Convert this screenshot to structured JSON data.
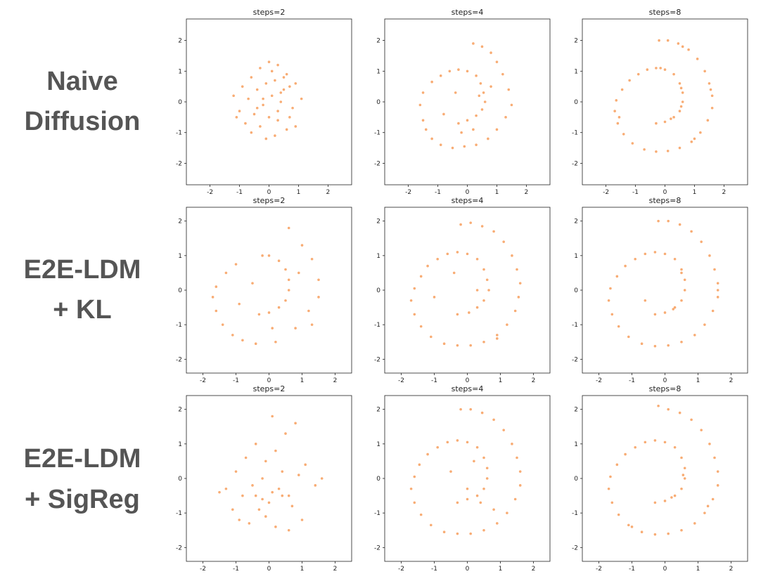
{
  "row_labels": [
    [
      "Naive",
      "Diffusion"
    ],
    [
      "E2E-LDM",
      "+ KL"
    ],
    [
      "E2E-LDM",
      "+ SigReg"
    ]
  ],
  "chart_data": [
    {
      "type": "scatter",
      "title": "steps=2",
      "color": "#f5802a",
      "x": [
        -1.2,
        -0.9,
        -0.6,
        -0.3,
        0,
        0.3,
        0.6,
        0.9,
        1.1,
        -1.0,
        -0.7,
        -0.4,
        -0.1,
        0.2,
        0.5,
        0.8,
        -0.8,
        -0.5,
        -0.2,
        0.1,
        0.4,
        0.7,
        -0.6,
        -0.3,
        0.0,
        0.3,
        0.6,
        0.2,
        -0.1,
        0.4,
        -0.4,
        0.1,
        0.9,
        -1.1,
        0.5,
        -0.2,
        0.3,
        0.7
      ],
      "y": [
        0.2,
        0.5,
        0.8,
        1.1,
        1.3,
        1.2,
        0.9,
        0.6,
        0.1,
        -0.3,
        0.1,
        0.4,
        0.6,
        0.7,
        0.4,
        -0.2,
        -0.7,
        -0.4,
        -0.1,
        0.2,
        0.0,
        -0.5,
        -1.0,
        -0.8,
        -0.5,
        -0.3,
        -0.9,
        -1.1,
        -1.2,
        0.3,
        -0.2,
        1.0,
        -0.8,
        -0.5,
        0.8,
        0.1,
        -0.6,
        0.5
      ],
      "xlim": [
        -2.8,
        2.8
      ],
      "ylim": [
        -2.7,
        2.7
      ],
      "xticks": [
        -2,
        -1,
        0,
        1,
        2
      ],
      "yticks": [
        -2,
        -1,
        0,
        1,
        2
      ]
    },
    {
      "type": "scatter",
      "title": "steps=4",
      "color": "#f5802a",
      "x": [
        -0.3,
        0.0,
        0.3,
        0.5,
        0.6,
        0.55,
        0.45,
        0.3,
        0.0,
        -0.3,
        -0.6,
        -0.9,
        -1.2,
        -1.5,
        -1.6,
        -1.5,
        -1.4,
        -1.2,
        -0.9,
        -0.5,
        -0.1,
        0.3,
        0.7,
        1.0,
        1.3,
        1.5,
        1.4,
        1.2,
        1.0,
        0.8,
        0.5,
        0.2,
        -0.4,
        0.2,
        0.8,
        -0.8,
        0.4,
        -0.2
      ],
      "y": [
        -0.7,
        -0.6,
        -0.45,
        -0.25,
        0.0,
        0.3,
        0.6,
        0.85,
        1.0,
        1.05,
        1.0,
        0.85,
        0.65,
        0.3,
        -0.1,
        -0.6,
        -0.9,
        -1.2,
        -1.4,
        -1.5,
        -1.45,
        -1.4,
        -1.2,
        -0.9,
        -0.5,
        -0.1,
        0.4,
        0.9,
        1.3,
        1.6,
        1.8,
        1.9,
        0.3,
        -0.9,
        0.5,
        -0.4,
        0.2,
        -1.0
      ],
      "xlim": [
        -2.8,
        2.8
      ],
      "ylim": [
        -2.7,
        2.7
      ],
      "xticks": [
        -2,
        -1,
        0,
        1,
        2
      ],
      "yticks": [
        -2,
        -1,
        0,
        1,
        2
      ]
    },
    {
      "type": "scatter",
      "title": "steps=8",
      "color": "#f5802a",
      "x": [
        -0.3,
        0.0,
        0.3,
        0.5,
        0.6,
        0.6,
        0.5,
        0.3,
        0.0,
        -0.3,
        -0.6,
        -0.9,
        -1.2,
        -1.45,
        -1.65,
        -1.7,
        -1.6,
        -1.4,
        -1.1,
        -0.7,
        -0.3,
        0.1,
        0.5,
        0.9,
        1.2,
        1.45,
        1.6,
        1.6,
        1.5,
        1.35,
        1.1,
        0.8,
        0.45,
        0.1,
        -0.2,
        0.2,
        0.55,
        0.55,
        -0.15,
        -1.55,
        1.0,
        1.55,
        0.6
      ],
      "y": [
        -0.7,
        -0.65,
        -0.5,
        -0.3,
        0.0,
        0.3,
        0.6,
        0.9,
        1.05,
        1.1,
        1.05,
        0.9,
        0.7,
        0.4,
        0.05,
        -0.3,
        -0.7,
        -1.05,
        -1.35,
        -1.55,
        -1.62,
        -1.6,
        -1.5,
        -1.3,
        -1.0,
        -0.6,
        -0.2,
        0.2,
        0.6,
        1.0,
        1.4,
        1.7,
        1.9,
        2.0,
        2.0,
        -0.55,
        -0.15,
        0.45,
        1.1,
        -0.5,
        -1.2,
        0.4,
        1.8
      ],
      "xlim": [
        -2.8,
        2.8
      ],
      "ylim": [
        -2.7,
        2.7
      ],
      "xticks": [
        -2,
        -1,
        0,
        1,
        2
      ],
      "yticks": [
        -2,
        -1,
        0,
        1,
        2
      ]
    },
    {
      "type": "scatter",
      "title": "steps=2",
      "color": "#f5802a",
      "x": [
        -0.3,
        0.0,
        0.3,
        0.5,
        0.6,
        0.6,
        0.5,
        0.3,
        0.0,
        -0.2,
        -1.0,
        -1.3,
        -1.6,
        -1.7,
        -1.6,
        -1.4,
        -1.1,
        -0.8,
        -0.4,
        0.2,
        0.8,
        1.2,
        1.5,
        1.5,
        1.3,
        1.0,
        0.6,
        -0.5,
        0.1,
        -0.9,
        0.9,
        1.3
      ],
      "y": [
        -0.7,
        -0.65,
        -0.5,
        -0.3,
        0.0,
        0.3,
        0.6,
        0.85,
        1.0,
        1.0,
        0.75,
        0.5,
        0.1,
        -0.2,
        -0.6,
        -1.0,
        -1.3,
        -1.45,
        -1.55,
        -1.5,
        -1.1,
        -0.6,
        -0.2,
        0.3,
        0.9,
        1.3,
        1.8,
        0.2,
        -1.1,
        -0.4,
        0.5,
        -1.0
      ],
      "xlim": [
        -2.5,
        2.5
      ],
      "ylim": [
        -2.4,
        2.4
      ],
      "xticks": [
        -2,
        -1,
        0,
        1,
        2
      ],
      "yticks": [
        -2,
        -1,
        0,
        1,
        2
      ]
    },
    {
      "type": "scatter",
      "title": "steps=4",
      "color": "#f5802a",
      "x": [
        -0.3,
        0.05,
        0.3,
        0.5,
        0.65,
        0.6,
        0.5,
        0.3,
        0.0,
        -0.3,
        -0.6,
        -0.9,
        -1.2,
        -1.4,
        -1.6,
        -1.7,
        -1.6,
        -1.4,
        -1.1,
        -0.7,
        -0.3,
        0.1,
        0.5,
        0.9,
        1.2,
        1.45,
        1.55,
        1.6,
        1.5,
        1.35,
        1.1,
        0.8,
        0.45,
        0.1,
        -0.2,
        0.3,
        -0.4,
        0.9,
        -1.0
      ],
      "y": [
        -0.7,
        -0.65,
        -0.5,
        -0.3,
        0.0,
        0.3,
        0.6,
        0.9,
        1.05,
        1.1,
        1.05,
        0.9,
        0.7,
        0.4,
        0.05,
        -0.3,
        -0.7,
        -1.05,
        -1.35,
        -1.55,
        -1.6,
        -1.6,
        -1.5,
        -1.3,
        -1.0,
        -0.6,
        -0.2,
        0.2,
        0.6,
        1.0,
        1.4,
        1.7,
        1.85,
        1.95,
        1.9,
        0.0,
        0.5,
        -1.4,
        -0.2
      ],
      "xlim": [
        -2.5,
        2.5
      ],
      "ylim": [
        -2.4,
        2.4
      ],
      "xticks": [
        -2,
        -1,
        0,
        1,
        2
      ],
      "yticks": [
        -2,
        -1,
        0,
        1,
        2
      ]
    },
    {
      "type": "scatter",
      "title": "steps=8",
      "color": "#f5802a",
      "x": [
        -0.3,
        0.0,
        0.3,
        0.5,
        0.6,
        0.6,
        0.5,
        0.3,
        0.0,
        -0.3,
        -0.6,
        -0.9,
        -1.2,
        -1.45,
        -1.65,
        -1.7,
        -1.6,
        -1.4,
        -1.1,
        -0.7,
        -0.3,
        0.1,
        0.5,
        0.9,
        1.2,
        1.45,
        1.6,
        1.6,
        1.5,
        1.35,
        1.1,
        0.8,
        0.45,
        0.1,
        -0.2,
        0.25,
        0.5,
        -0.6,
        1.6
      ],
      "y": [
        -0.7,
        -0.65,
        -0.5,
        -0.3,
        0.0,
        0.3,
        0.6,
        0.9,
        1.05,
        1.1,
        1.05,
        0.9,
        0.7,
        0.4,
        0.05,
        -0.3,
        -0.7,
        -1.05,
        -1.35,
        -1.55,
        -1.62,
        -1.6,
        -1.5,
        -1.3,
        -1.0,
        -0.6,
        -0.2,
        0.2,
        0.6,
        1.0,
        1.4,
        1.7,
        1.9,
        2.0,
        2.0,
        -0.55,
        0.5,
        -0.3,
        0.0
      ],
      "xlim": [
        -2.5,
        2.5
      ],
      "ylim": [
        -2.4,
        2.4
      ],
      "xticks": [
        -2,
        -1,
        0,
        1,
        2
      ],
      "yticks": [
        -2,
        -1,
        0,
        1,
        2
      ]
    },
    {
      "type": "scatter",
      "title": "steps=2",
      "color": "#f5802a",
      "x": [
        -1.3,
        -1.0,
        -0.7,
        -0.4,
        -0.1,
        0.2,
        0.5,
        0.8,
        1.1,
        1.4,
        -1.1,
        -0.8,
        -0.5,
        -0.2,
        0.1,
        0.4,
        0.7,
        1.0,
        -0.6,
        -0.3,
        0.0,
        0.3,
        0.6,
        -0.4,
        -0.1,
        0.2,
        -0.9,
        0.9,
        0.4,
        -0.2,
        0.6,
        1.6,
        -1.5,
        0.1
      ],
      "y": [
        -0.3,
        0.2,
        0.6,
        1.0,
        0.5,
        0.8,
        1.3,
        1.6,
        0.4,
        -0.2,
        -0.9,
        -0.5,
        -0.2,
        -0.6,
        -0.4,
        -0.5,
        -0.8,
        -1.2,
        -1.3,
        -0.9,
        -0.7,
        -0.3,
        -0.5,
        -0.5,
        -1.1,
        -1.4,
        -1.2,
        0.1,
        0.2,
        0.0,
        -1.5,
        0.0,
        -0.4,
        1.8
      ],
      "xlim": [
        -2.5,
        2.5
      ],
      "ylim": [
        -2.4,
        2.4
      ],
      "xticks": [
        -2,
        -1,
        0,
        1,
        2
      ],
      "yticks": [
        -2,
        -1,
        0,
        1,
        2
      ]
    },
    {
      "type": "scatter",
      "title": "steps=4",
      "color": "#f5802a",
      "x": [
        -0.3,
        0.0,
        0.3,
        0.5,
        0.6,
        0.6,
        0.5,
        0.3,
        0.0,
        -0.3,
        -0.6,
        -0.9,
        -1.2,
        -1.45,
        -1.6,
        -1.7,
        -1.6,
        -1.4,
        -1.1,
        -0.7,
        -0.3,
        0.1,
        0.5,
        0.9,
        1.2,
        1.45,
        1.6,
        1.6,
        1.5,
        1.35,
        1.1,
        0.8,
        0.45,
        0.1,
        -0.2,
        0.0,
        0.4,
        -0.5,
        0.2,
        0.8
      ],
      "y": [
        -0.7,
        -0.6,
        -0.5,
        -0.3,
        0.0,
        0.3,
        0.6,
        0.9,
        1.05,
        1.1,
        1.05,
        0.9,
        0.7,
        0.4,
        0.05,
        -0.3,
        -0.7,
        -1.05,
        -1.35,
        -1.55,
        -1.6,
        -1.6,
        -1.5,
        -1.3,
        -1.0,
        -0.6,
        -0.2,
        0.2,
        0.6,
        1.0,
        1.4,
        1.7,
        1.9,
        2.0,
        2.0,
        -0.3,
        -0.7,
        0.2,
        0.5,
        -0.9
      ],
      "xlim": [
        -2.5,
        2.5
      ],
      "ylim": [
        -2.4,
        2.4
      ],
      "xticks": [
        -2,
        -1,
        0,
        1,
        2
      ],
      "yticks": [
        -2,
        -1,
        0,
        1,
        2
      ]
    },
    {
      "type": "scatter",
      "title": "steps=8",
      "color": "#f5802a",
      "x": [
        -0.3,
        0.0,
        0.3,
        0.5,
        0.6,
        0.6,
        0.5,
        0.3,
        0.0,
        -0.3,
        -0.6,
        -0.9,
        -1.2,
        -1.45,
        -1.65,
        -1.7,
        -1.6,
        -1.4,
        -1.1,
        -0.7,
        -0.3,
        0.1,
        0.5,
        0.9,
        1.2,
        1.45,
        1.6,
        1.6,
        1.5,
        1.35,
        1.1,
        0.8,
        0.45,
        0.1,
        -0.2,
        0.2,
        0.55,
        -1.0,
        1.3
      ],
      "y": [
        -0.7,
        -0.65,
        -0.5,
        -0.3,
        0.0,
        0.3,
        0.6,
        0.9,
        1.05,
        1.1,
        1.05,
        0.9,
        0.7,
        0.4,
        0.05,
        -0.3,
        -0.7,
        -1.05,
        -1.35,
        -1.55,
        -1.62,
        -1.6,
        -1.5,
        -1.3,
        -1.0,
        -0.6,
        -0.2,
        0.2,
        0.6,
        1.0,
        1.4,
        1.7,
        1.9,
        2.0,
        2.1,
        -0.55,
        0.1,
        -1.4,
        -0.8
      ],
      "xlim": [
        -2.5,
        2.5
      ],
      "ylim": [
        -2.4,
        2.4
      ],
      "xticks": [
        -2,
        -1,
        0,
        1,
        2
      ],
      "yticks": [
        -2,
        -1,
        0,
        1,
        2
      ]
    }
  ]
}
